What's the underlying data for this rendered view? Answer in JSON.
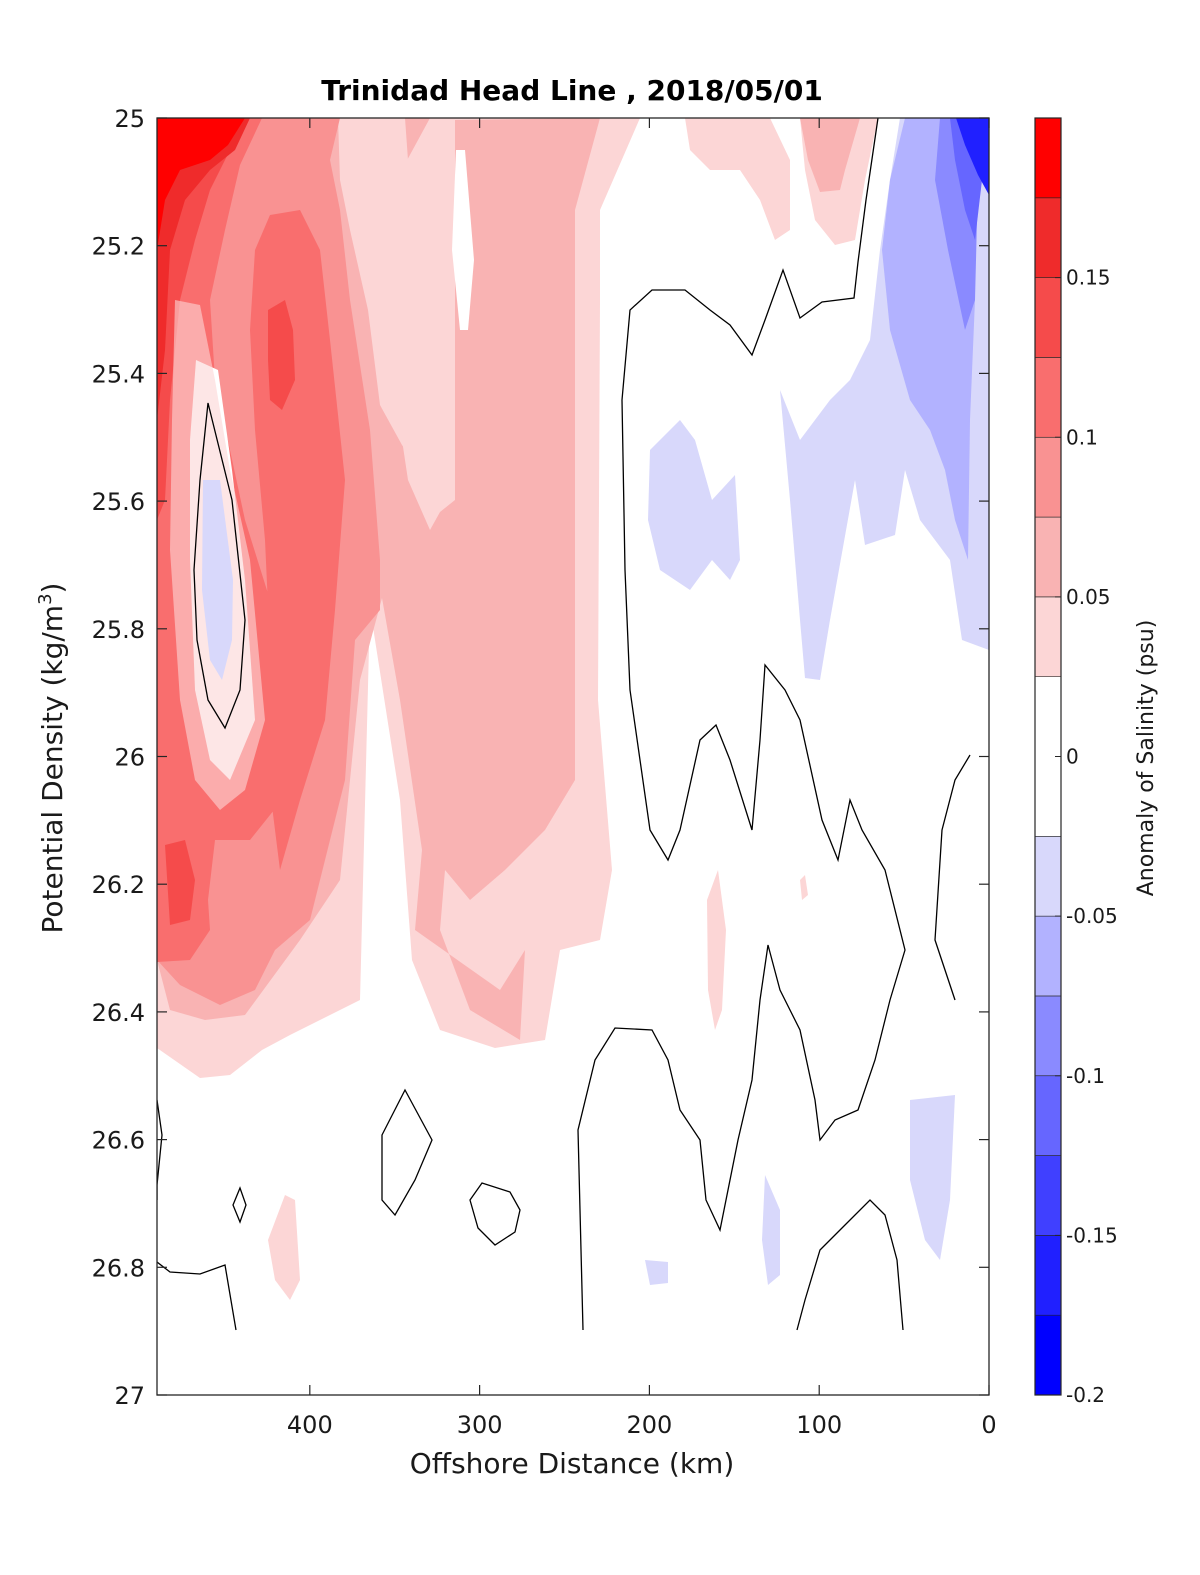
{
  "chart_data": {
    "type": "contour",
    "title": "Trinidad Head Line , 2018/05/01",
    "xlabel": "Offshore Distance (km)",
    "ylabel_main": "Potential Density (kg/m",
    "ylabel_sup": "3",
    "ylabel_close": ")",
    "colorbar_label": "Anomaly of Salinity (psu)",
    "xlim": [
      490,
      0
    ],
    "ylim": [
      25,
      27
    ],
    "y_reversed": true,
    "x_ticks": [
      400,
      300,
      200,
      100,
      0
    ],
    "x_tick_labels": [
      "400",
      "300",
      "200",
      "100",
      "0"
    ],
    "y_ticks": [
      25,
      25.2,
      25.4,
      25.6,
      25.8,
      26,
      26.2,
      26.4,
      26.6,
      26.8,
      27
    ],
    "y_tick_labels": [
      "25",
      "25.2",
      "25.4",
      "25.6",
      "25.8",
      "26",
      "26.2",
      "26.4",
      "26.6",
      "26.8",
      "27"
    ],
    "colorbar": {
      "clim": [
        -0.2,
        0.2
      ],
      "ticks": [
        -0.2,
        -0.15,
        -0.1,
        -0.05,
        0,
        0.05,
        0.1,
        0.15
      ],
      "tick_labels": [
        "-0.2",
        "-0.15",
        "-0.1",
        "-0.05",
        "0",
        "0.05",
        "0.1",
        "0.15"
      ],
      "levels": [
        -0.2,
        -0.175,
        -0.15,
        -0.125,
        -0.1,
        -0.075,
        -0.05,
        -0.025,
        0.025,
        0.05,
        0.075,
        0.1,
        0.125,
        0.15,
        0.175,
        0.2
      ],
      "colors": [
        "#0000ff",
        "#2020ff",
        "#4040ff",
        "#6666ff",
        "#8a8aff",
        "#b2b2ff",
        "#d8d8fb",
        "#ffffff",
        "#fcd6d6",
        "#f9b3b3",
        "#f99292",
        "#f96e6e",
        "#f54b4b",
        "#ef2b2b",
        "#ff0000"
      ]
    },
    "features": [
      {
        "sign": "positive",
        "level": 0.175,
        "x_range": [
          490,
          440
        ],
        "y_range": [
          25,
          25.05
        ],
        "note_color": "#ff0000"
      },
      {
        "sign": "positive",
        "level": 0.1,
        "x_range": [
          490,
          395
        ],
        "y_range": [
          25,
          26.4
        ]
      },
      {
        "sign": "positive",
        "level": 0.05,
        "x_range": [
          340,
          225
        ],
        "y_range": [
          25,
          26.45
        ]
      },
      {
        "sign": "negative",
        "level": -0.05,
        "x_range": [
          115,
          15
        ],
        "y_range": [
          25,
          25.9
        ]
      },
      {
        "sign": "negative",
        "level": -0.2,
        "x_range": [
          35,
          10
        ],
        "y_range": [
          25,
          25.15
        ]
      },
      {
        "sign": "negative",
        "level": -0.05,
        "x_range": [
          465,
          445
        ],
        "y_range": [
          25.55,
          25.9
        ]
      },
      {
        "sign": "positive",
        "level": 0.05,
        "x_range": [
          415,
          395
        ],
        "y_range": [
          26.7,
          26.85
        ]
      }
    ]
  }
}
